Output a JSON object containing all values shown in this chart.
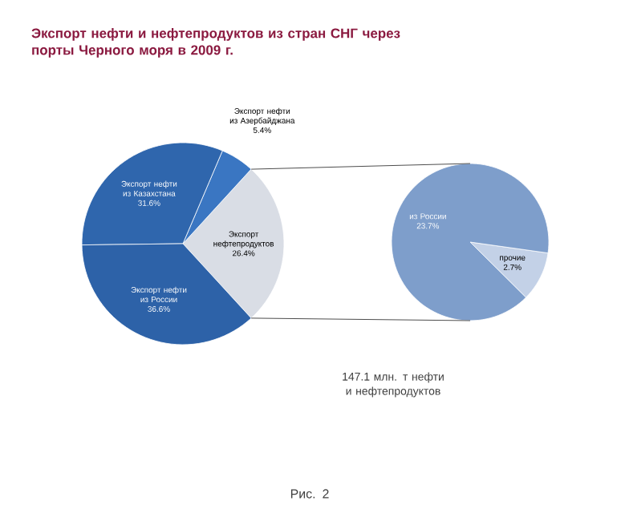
{
  "chart_data": [
    {
      "type": "pie",
      "title": "Экспорт нефти и нефтепродуктов из стран СНГ через порты Черного моря в 2009 г.",
      "categories": [
        "Экспорт нефтепродуктов",
        "Экспорт нефти из Азербайджана",
        "Экспорт нефти из Казахстана",
        "Экспорт нефти из России"
      ],
      "values": [
        26.4,
        5.4,
        31.6,
        36.6
      ],
      "value_labels": [
        "26.4%",
        "5.4%",
        "31.6%",
        "36.6%"
      ],
      "colors": [
        "#d9dde5",
        "#3a76c2",
        "#2f66ad",
        "#2d62a8"
      ],
      "annotations": [
        "147.1 млн. т нефти и нефтепродуктов",
        "Рис. 2"
      ]
    },
    {
      "type": "pie",
      "categories": [
        "прочие",
        "из России"
      ],
      "values": [
        2.7,
        23.7
      ],
      "value_labels": [
        "2.7%",
        "23.7%"
      ],
      "colors": [
        "#c3d1e7",
        "#7e9ecb"
      ]
    }
  ]
}
